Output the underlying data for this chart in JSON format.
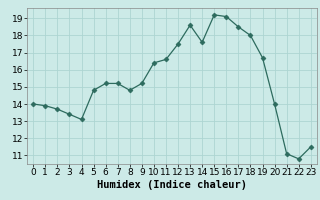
{
  "x": [
    0,
    1,
    2,
    3,
    4,
    5,
    6,
    7,
    8,
    9,
    10,
    11,
    12,
    13,
    14,
    15,
    16,
    17,
    18,
    19,
    20,
    21,
    22,
    23
  ],
  "y": [
    14.0,
    13.9,
    13.7,
    13.4,
    13.1,
    14.8,
    15.2,
    15.2,
    14.8,
    15.2,
    16.4,
    16.6,
    17.5,
    18.6,
    17.6,
    19.2,
    19.1,
    18.5,
    18.0,
    16.7,
    14.0,
    11.1,
    10.8,
    11.5
  ],
  "xlabel": "Humidex (Indice chaleur)",
  "ylim": [
    10.5,
    19.6
  ],
  "xlim": [
    -0.5,
    23.5
  ],
  "yticks": [
    11,
    12,
    13,
    14,
    15,
    16,
    17,
    18,
    19
  ],
  "xticks": [
    0,
    1,
    2,
    3,
    4,
    5,
    6,
    7,
    8,
    9,
    10,
    11,
    12,
    13,
    14,
    15,
    16,
    17,
    18,
    19,
    20,
    21,
    22,
    23
  ],
  "line_color": "#2d6b5e",
  "marker": "D",
  "marker_size": 2.5,
  "bg_color": "#cceae7",
  "grid_color": "#add5d2",
  "tick_label_fontsize": 6.5,
  "xlabel_fontsize": 7.5
}
